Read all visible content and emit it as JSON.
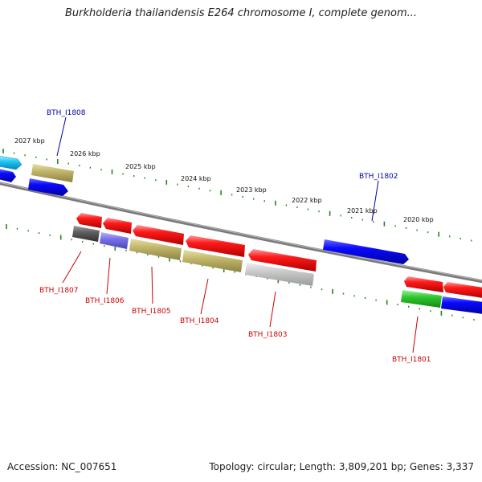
{
  "title": "Burkholderia thailandensis E264 chromosome I, complete genom...",
  "footer": {
    "accession": "Accession: NC_007651",
    "info": "Topology: circular; Length: 3,809,201 bp; Genes: 3,337"
  },
  "kbp_ticks": [
    "2027 kbp",
    "2026 kbp",
    "2025 kbp",
    "2024 kbp",
    "2023 kbp",
    "2022 kbp",
    "2021 kbp",
    "2020 kbp"
  ],
  "gene_labels": {
    "bth_i1808": "BTH_I1808",
    "bth_i1807": "BTH_I1807",
    "bth_i1806": "BTH_I1806",
    "bth_i1805": "BTH_I1805",
    "bth_i1804": "BTH_I1804",
    "bth_i1803": "BTH_I1803",
    "bth_i1802": "BTH_I1802",
    "bth_i1801": "BTH_I1801"
  },
  "colors": {
    "label_forward": "#0000aa",
    "label_reverse": "#cc0000",
    "backbone": "#808080",
    "tick": "#228822"
  }
}
